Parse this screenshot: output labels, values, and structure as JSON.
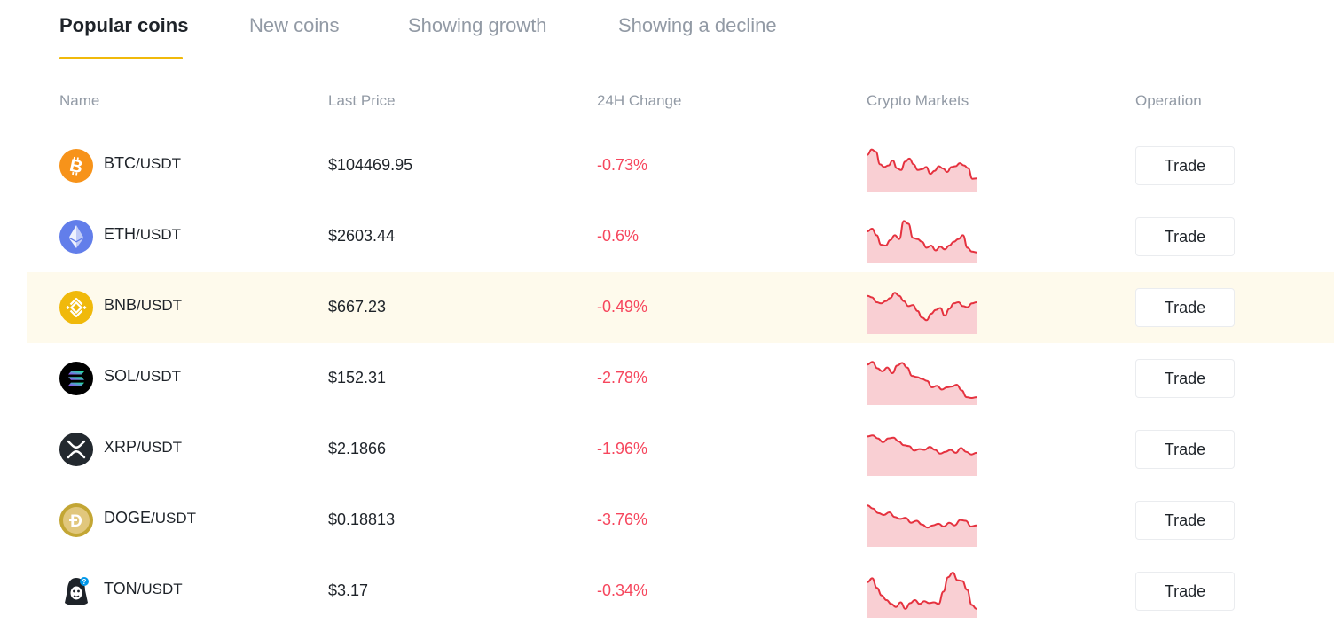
{
  "tabs": [
    {
      "label": "Popular coins",
      "active": true
    },
    {
      "label": "New coins",
      "active": false
    },
    {
      "label": "Showing growth",
      "active": false
    },
    {
      "label": "Showing a decline",
      "active": false
    }
  ],
  "table": {
    "headers": {
      "name": "Name",
      "last_price": "Last Price",
      "change": "24H Change",
      "markets": "Crypto Markets",
      "operation": "Operation"
    },
    "rows": [
      {
        "base": "BTC",
        "quote": "/USDT",
        "price": "$104469.95",
        "change": "-0.73%",
        "trade": "Trade",
        "icon": "bitcoin-icon",
        "trend": [
          0.2,
          0.06,
          0.12,
          0.45,
          0.52,
          0.48,
          0.35,
          0.55,
          0.6,
          0.38,
          0.3,
          0.45,
          0.6,
          0.58,
          0.52,
          0.7,
          0.62,
          0.5,
          0.56,
          0.65,
          0.52,
          0.5,
          0.42,
          0.48,
          0.55,
          0.83,
          0.82
        ]
      },
      {
        "base": "ETH",
        "quote": "/USDT",
        "price": "$2603.44",
        "change": "-0.6%",
        "trade": "Trade",
        "icon": "ethereum-icon",
        "trend": [
          0.35,
          0.28,
          0.45,
          0.7,
          0.72,
          0.58,
          0.45,
          0.55,
          0.08,
          0.15,
          0.52,
          0.55,
          0.62,
          0.78,
          0.72,
          0.85,
          0.75,
          0.82,
          0.72,
          0.62,
          0.55,
          0.45,
          0.78,
          0.88,
          0.9
        ]
      },
      {
        "base": "BNB",
        "quote": "/USDT",
        "price": "$667.23",
        "change": "-0.49%",
        "trade": "Trade",
        "icon": "bnb-icon",
        "trend": [
          0.18,
          0.22,
          0.35,
          0.38,
          0.32,
          0.24,
          0.1,
          0.18,
          0.32,
          0.45,
          0.42,
          0.58,
          0.75,
          0.82,
          0.65,
          0.55,
          0.5,
          0.7,
          0.52,
          0.38,
          0.35,
          0.45,
          0.48,
          0.38,
          0.35
        ]
      },
      {
        "base": "SOL",
        "quote": "/USDT",
        "price": "$152.31",
        "change": "-2.78%",
        "trade": "Trade",
        "icon": "solana-icon",
        "trend": [
          0.12,
          0.05,
          0.22,
          0.3,
          0.2,
          0.35,
          0.15,
          0.08,
          0.2,
          0.42,
          0.45,
          0.5,
          0.55,
          0.72,
          0.68,
          0.78,
          0.72,
          0.7,
          0.65,
          0.8,
          0.98,
          1.0,
          0.98
        ]
      },
      {
        "base": "XRP",
        "quote": "/USDT",
        "price": "$2.1866",
        "change": "-1.96%",
        "trade": "Trade",
        "icon": "xrp-icon",
        "trend": [
          0.15,
          0.12,
          0.2,
          0.3,
          0.2,
          0.18,
          0.28,
          0.38,
          0.4,
          0.52,
          0.48,
          0.5,
          0.42,
          0.5,
          0.6,
          0.55,
          0.5,
          0.58,
          0.45,
          0.55,
          0.62,
          0.58
        ]
      },
      {
        "base": "DOGE",
        "quote": "/USDT",
        "price": "$0.18813",
        "change": "-3.76%",
        "trade": "Trade",
        "icon": "dogecoin-icon",
        "trend": [
          0.1,
          0.18,
          0.3,
          0.35,
          0.28,
          0.4,
          0.45,
          0.42,
          0.55,
          0.5,
          0.6,
          0.68,
          0.62,
          0.58,
          0.65,
          0.55,
          0.62,
          0.48,
          0.5,
          0.65,
          0.62
        ]
      },
      {
        "base": "TON",
        "quote": "/USDT",
        "price": "$3.17",
        "change": "-0.34%",
        "trade": "Trade",
        "icon": "toncoin-icon",
        "trend": [
          0.25,
          0.15,
          0.4,
          0.6,
          0.72,
          0.82,
          0.9,
          0.78,
          0.95,
          0.8,
          0.72,
          0.82,
          0.75,
          0.8,
          0.78,
          0.82,
          0.5,
          0.12,
          0.0,
          0.2,
          0.22,
          0.45,
          0.85,
          0.95
        ]
      }
    ]
  },
  "colors": {
    "accent": "#f0b90b",
    "down": "#f6465d",
    "spark_line": "#e5323f",
    "spark_fill": "#f9cfd3",
    "highlight_row": "#fefaec"
  }
}
